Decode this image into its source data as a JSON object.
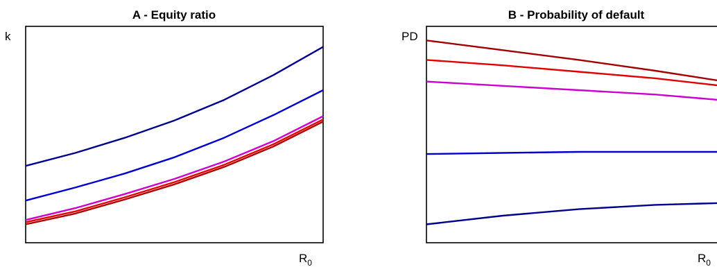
{
  "chart_data": [
    {
      "type": "line",
      "title": "A - Equity ratio",
      "ylabel": "k",
      "xlabel": "R",
      "xlabel_subscript": "0",
      "xlim": [
        0,
        1
      ],
      "ylim": [
        0,
        1
      ],
      "x": [
        0,
        0.167,
        0.333,
        0.5,
        0.667,
        0.833,
        1
      ],
      "series": [
        {
          "color": "#00008B",
          "values": [
            0.355,
            0.415,
            0.485,
            0.565,
            0.66,
            0.775,
            0.905
          ]
        },
        {
          "color": "#0000CD",
          "values": [
            0.195,
            0.255,
            0.32,
            0.395,
            0.485,
            0.59,
            0.705
          ]
        },
        {
          "color": "#CC00CC",
          "values": [
            0.105,
            0.16,
            0.225,
            0.295,
            0.375,
            0.47,
            0.585
          ]
        },
        {
          "color": "#E00000",
          "values": [
            0.095,
            0.145,
            0.21,
            0.28,
            0.36,
            0.455,
            0.57
          ]
        },
        {
          "color": "#B00000",
          "values": [
            0.085,
            0.135,
            0.2,
            0.27,
            0.35,
            0.445,
            0.56
          ]
        }
      ]
    },
    {
      "type": "line",
      "title": "B - Probability of default",
      "ylabel": "PD",
      "xlabel": "R",
      "xlabel_subscript": "0",
      "xlim": [
        0,
        1
      ],
      "ylim": [
        0,
        1
      ],
      "x": [
        0,
        0.25,
        0.5,
        0.75,
        1
      ],
      "series": [
        {
          "color": "#A00000",
          "values": [
            0.935,
            0.89,
            0.845,
            0.795,
            0.74
          ]
        },
        {
          "color": "#E00000",
          "values": [
            0.845,
            0.82,
            0.79,
            0.76,
            0.72
          ]
        },
        {
          "color": "#CC00CC",
          "values": [
            0.745,
            0.725,
            0.705,
            0.685,
            0.655
          ]
        },
        {
          "color": "#0000CD",
          "values": [
            0.41,
            0.415,
            0.42,
            0.42,
            0.42
          ]
        },
        {
          "color": "#00008B",
          "values": [
            0.085,
            0.125,
            0.155,
            0.175,
            0.185
          ]
        }
      ]
    }
  ]
}
